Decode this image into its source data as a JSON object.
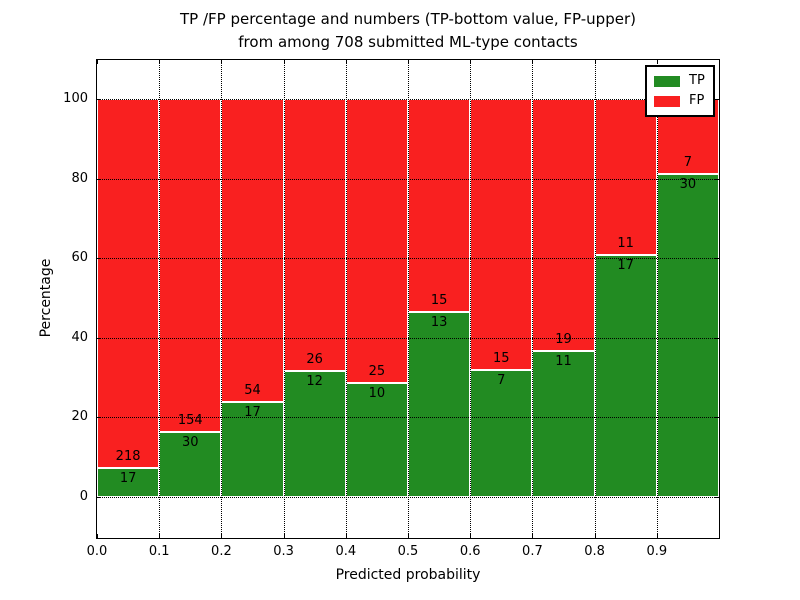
{
  "title": {
    "line1": "TP /FP percentage and numbers (TP-bottom value, FP-upper)",
    "line2": "from among 708 submitted ML-type contacts"
  },
  "axes": {
    "xlabel": "Predicted probability",
    "ylabel": "Percentage",
    "y_tick_labels": [
      "0",
      "20",
      "40",
      "60",
      "80",
      "100"
    ],
    "y_tick_values": [
      0,
      20,
      40,
      60,
      80,
      100
    ],
    "x_tick_labels": [
      "0.0",
      "0.1",
      "0.2",
      "0.3",
      "0.4",
      "0.5",
      "0.6",
      "0.7",
      "0.8",
      "0.9"
    ],
    "x_tick_values": [
      0.0,
      0.1,
      0.2,
      0.3,
      0.4,
      0.5,
      0.6,
      0.7,
      0.8,
      0.9
    ]
  },
  "legend": {
    "items": [
      {
        "label": "TP",
        "color": "#228b22"
      },
      {
        "label": "FP",
        "color": "#f92020"
      }
    ]
  },
  "colors": {
    "tp_green": "#228b22",
    "fp_red": "#f92020",
    "bar_edge": "#ffffff",
    "grid": "#000000"
  },
  "chart_data": {
    "type": "bar",
    "stacked": true,
    "normalized": "each bin scaled to 100%, bar number labels show raw counts (TP bottom, FP upper)",
    "title": "TP /FP percentage and numbers (TP-bottom value, FP-upper) from among 708 submitted ML-type contacts",
    "xlabel": "Predicted probability",
    "ylabel": "Percentage",
    "xlim": [
      0.0,
      1.0
    ],
    "ylim": [
      -10,
      110
    ],
    "grid": true,
    "legend_position": "upper right",
    "bin_width": 0.1,
    "categories": [
      0.0,
      0.1,
      0.2,
      0.3,
      0.4,
      0.5,
      0.6,
      0.7,
      0.8,
      0.9
    ],
    "series": [
      {
        "name": "TP",
        "color": "#228b22",
        "counts": [
          17,
          30,
          17,
          12,
          10,
          13,
          7,
          11,
          17,
          30
        ]
      },
      {
        "name": "FP",
        "color": "#f92020",
        "counts": [
          218,
          154,
          54,
          26,
          25,
          15,
          15,
          19,
          11,
          7
        ]
      }
    ],
    "tp_percent": [
      7.23,
      16.3,
      23.94,
      31.58,
      28.57,
      46.43,
      31.82,
      36.67,
      60.71,
      81.08
    ],
    "total_contacts": 708
  }
}
